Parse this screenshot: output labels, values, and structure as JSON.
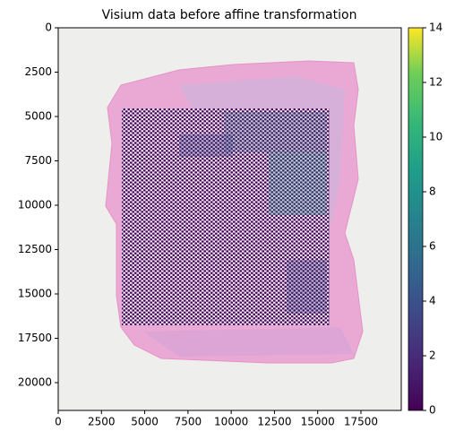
{
  "chart_data": {
    "type": "image",
    "title": "Visium data before affine transformation",
    "xlim": [
      0,
      19830
    ],
    "xticks": [
      0,
      2500,
      5000,
      7500,
      10000,
      12500,
      15000,
      17500
    ],
    "ylim": [
      21565,
      0
    ],
    "yticks": [
      0,
      2500,
      5000,
      7500,
      10000,
      12500,
      15000,
      17500,
      20000
    ],
    "colorbar": {
      "lim": [
        0,
        14
      ],
      "ticks": [
        0,
        2,
        4,
        6,
        8,
        10,
        12,
        14
      ],
      "colormap": "viridis"
    }
  }
}
